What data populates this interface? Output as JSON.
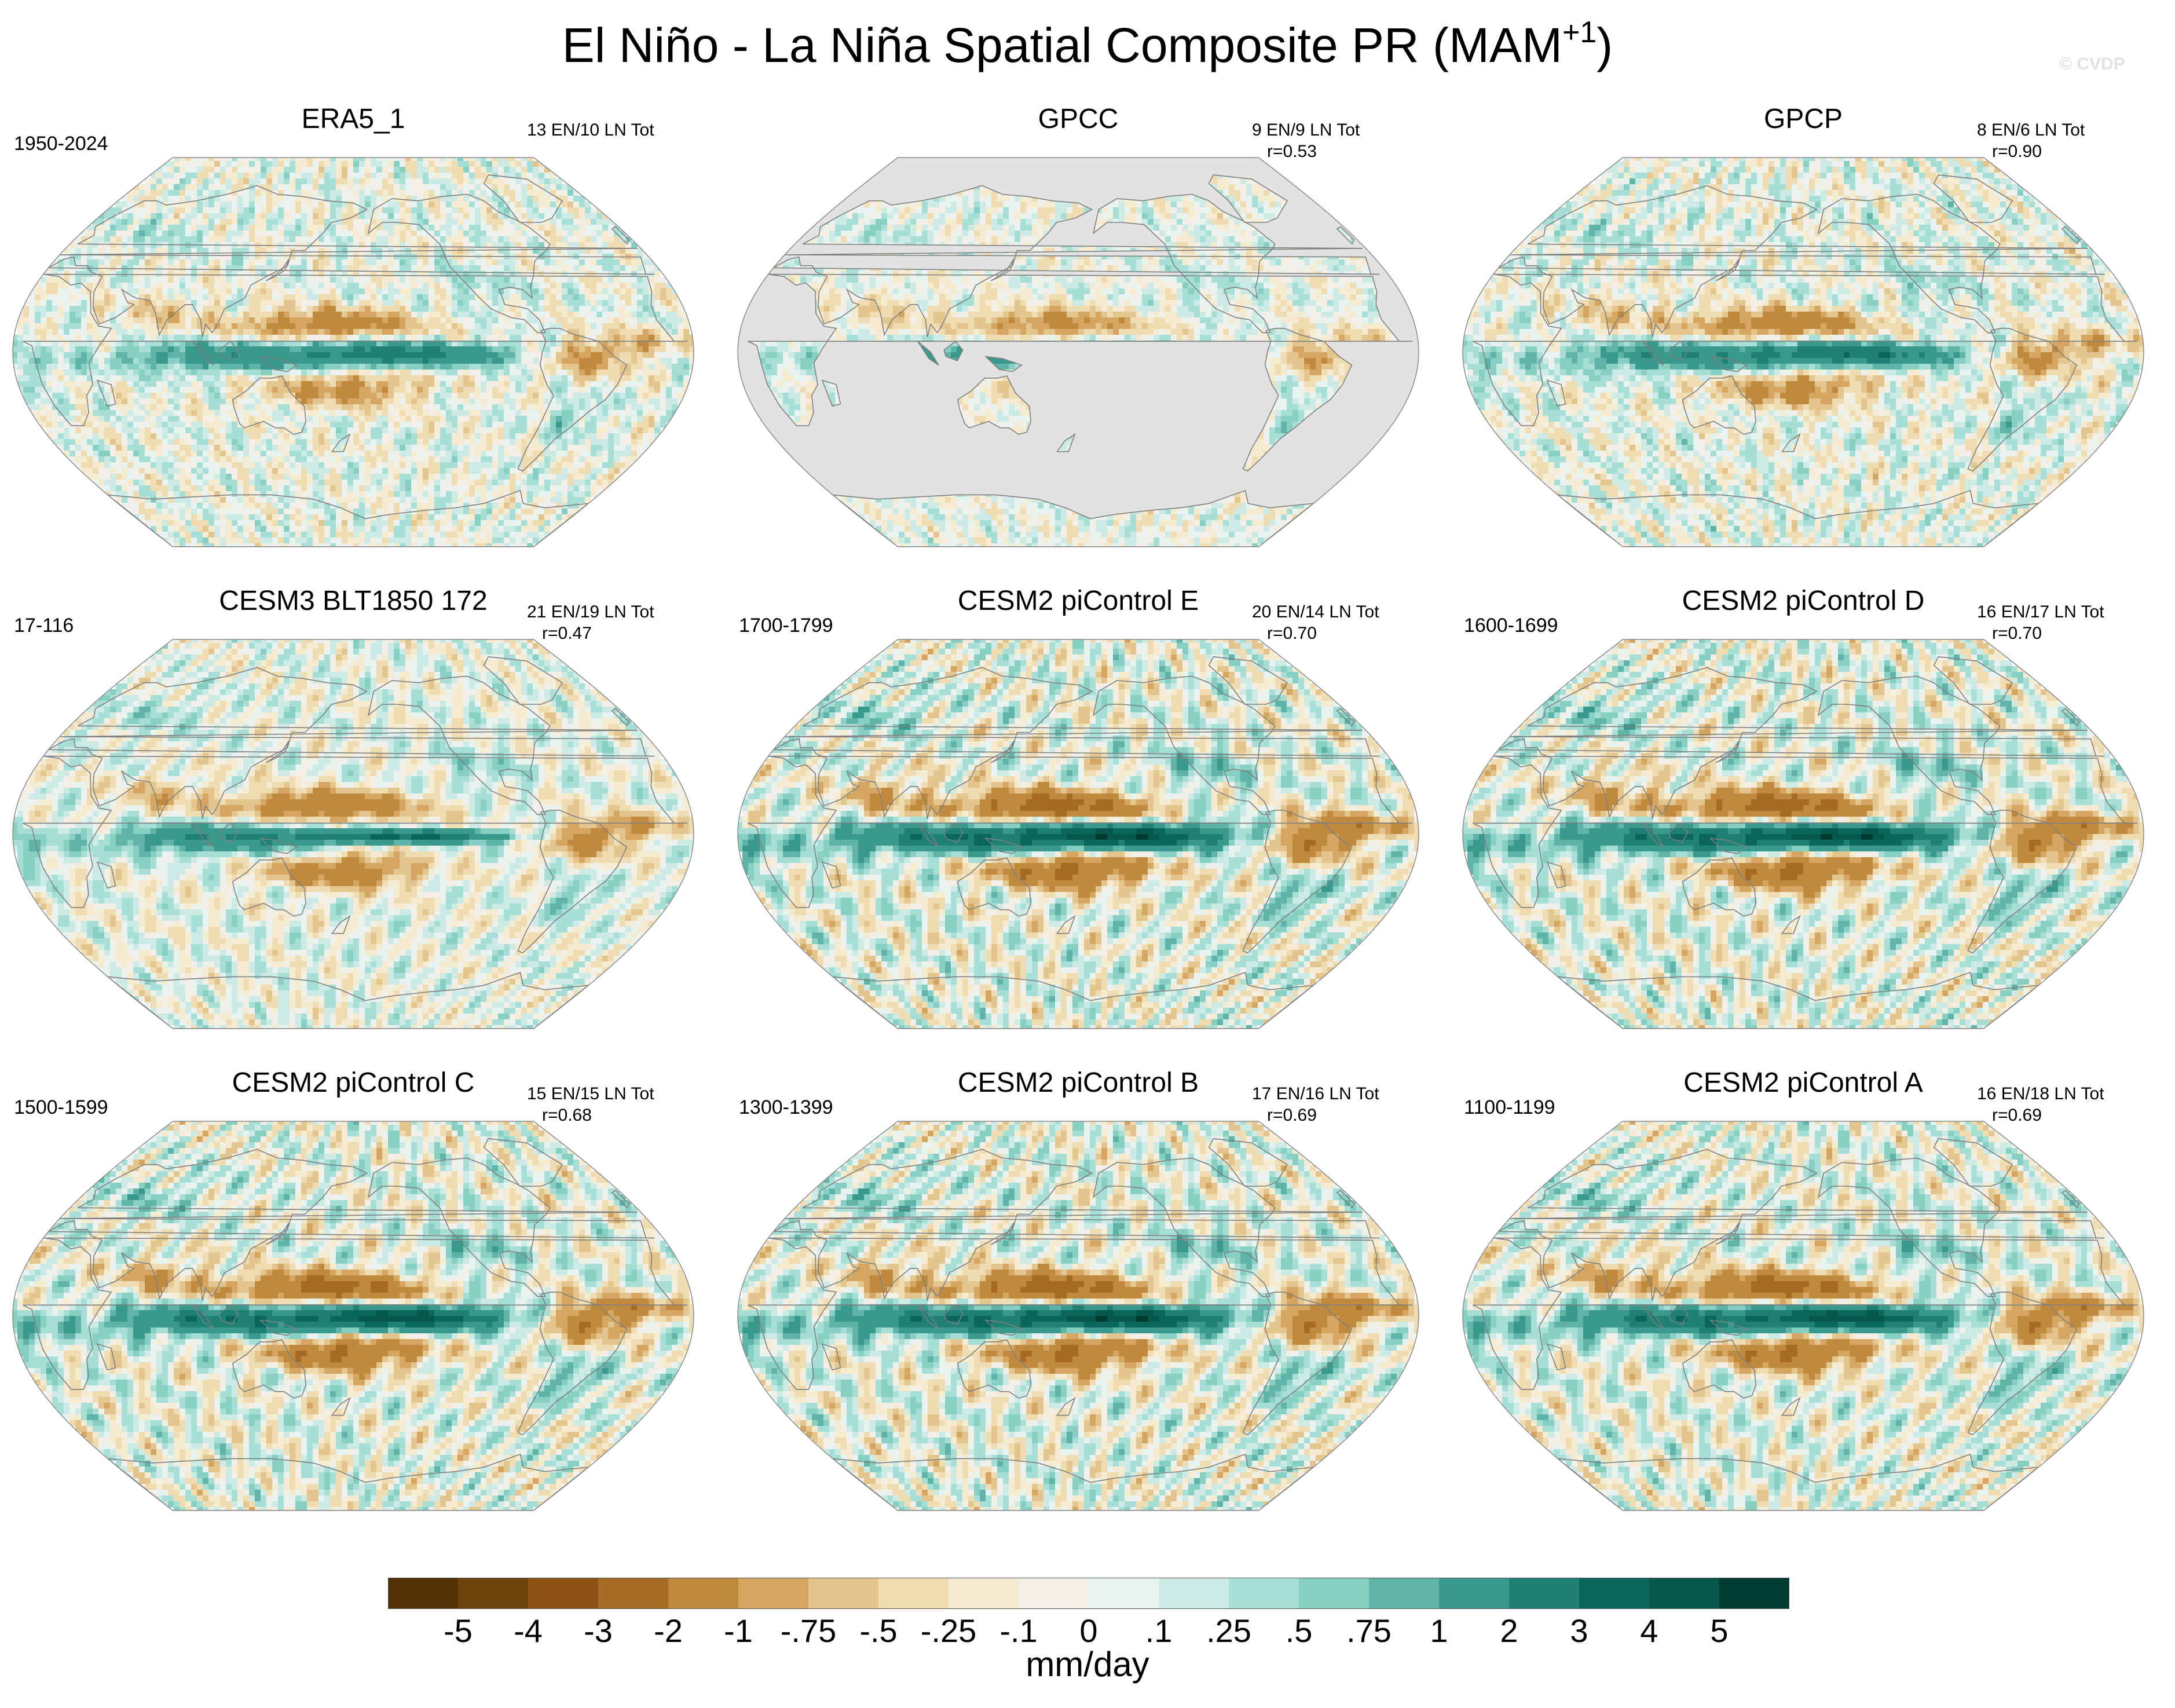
{
  "figure": {
    "title_main": "El Niño - La Niña Spatial Composite PR (MAM",
    "title_sup": "+1",
    "title_close": ")",
    "watermark": "© CVDP"
  },
  "colors": {
    "land_mask": "#e2e2e2",
    "coast": "#7f7f7f",
    "frame": "#8a8a8a"
  },
  "colorbar": {
    "units": "mm/day",
    "labels": [
      "-5",
      "-4",
      "-3",
      "-2",
      "-1",
      "-.75",
      "-.5",
      "-.25",
      "-.1",
      "0",
      ".1",
      ".25",
      ".5",
      ".75",
      "1",
      "2",
      "3",
      "4",
      "5"
    ],
    "colors": [
      "#543005",
      "#6e420c",
      "#8c5113",
      "#a66a24",
      "#bf8a3e",
      "#d4a661",
      "#e3c68e",
      "#efdcb3",
      "#f5ebd0",
      "#f2efe9",
      "#e8f2ef",
      "#cdeae4",
      "#a7ded5",
      "#86cfc2",
      "#5fb3a7",
      "#3a998d",
      "#1f8075",
      "#0b675c",
      "#05574a",
      "#003c30"
    ]
  },
  "chart_data": [
    {
      "type": "heatmap",
      "title": "ERA5_1",
      "period": "1950-2024",
      "counts": "13 EN/10 LN Tot",
      "correlation": "",
      "pattern": 1.1,
      "variant": "obs_era5",
      "levels": [
        -5,
        -4,
        -3,
        -2,
        -1,
        -0.75,
        -0.5,
        -0.25,
        -0.1,
        0,
        0.1,
        0.25,
        0.5,
        0.75,
        1,
        2,
        3,
        4,
        5
      ]
    },
    {
      "type": "heatmap",
      "title": "GPCC",
      "period": "",
      "counts": "9 EN/9 LN Tot",
      "correlation": "r=0.53",
      "pattern": 0.9,
      "variant": "land_only",
      "levels": [
        -5,
        -4,
        -3,
        -2,
        -1,
        -0.75,
        -0.5,
        -0.25,
        -0.1,
        0,
        0.1,
        0.25,
        0.5,
        0.75,
        1,
        2,
        3,
        4,
        5
      ]
    },
    {
      "type": "heatmap",
      "title": "GPCP",
      "period": "",
      "counts": "8 EN/6 LN Tot",
      "correlation": "r=0.90",
      "pattern": 1.2,
      "variant": "obs_gpcp",
      "levels": [
        -5,
        -4,
        -3,
        -2,
        -1,
        -0.75,
        -0.5,
        -0.25,
        -0.1,
        0,
        0.1,
        0.25,
        0.5,
        0.75,
        1,
        2,
        3,
        4,
        5
      ]
    },
    {
      "type": "heatmap",
      "title": "CESM3 BLT1850 172",
      "period": "17-116",
      "counts": "21 EN/19 LN Tot",
      "correlation": "r=0.47",
      "pattern": 1.4,
      "variant": "narrow",
      "levels": [
        -5,
        -4,
        -3,
        -2,
        -1,
        -0.75,
        -0.5,
        -0.25,
        -0.1,
        0,
        0.1,
        0.25,
        0.5,
        0.75,
        1,
        2,
        3,
        4,
        5
      ]
    },
    {
      "type": "heatmap",
      "title": "CESM2 piControl E",
      "period": "1700-1799",
      "counts": "20 EN/14 LN Tot",
      "correlation": "r=0.70",
      "pattern": 2.0,
      "variant": "model",
      "levels": [
        -5,
        -4,
        -3,
        -2,
        -1,
        -0.75,
        -0.5,
        -0.25,
        -0.1,
        0,
        0.1,
        0.25,
        0.5,
        0.75,
        1,
        2,
        3,
        4,
        5
      ]
    },
    {
      "type": "heatmap",
      "title": "CESM2 piControl D",
      "period": "1600-1699",
      "counts": "16 EN/17 LN Tot",
      "correlation": "r=0.70",
      "pattern": 2.0,
      "variant": "model",
      "levels": [
        -5,
        -4,
        -3,
        -2,
        -1,
        -0.75,
        -0.5,
        -0.25,
        -0.1,
        0,
        0.1,
        0.25,
        0.5,
        0.75,
        1,
        2,
        3,
        4,
        5
      ]
    },
    {
      "type": "heatmap",
      "title": "CESM2 piControl C",
      "period": "1500-1599",
      "counts": "15 EN/15 LN Tot",
      "correlation": "r=0.68",
      "pattern": 1.9,
      "variant": "model",
      "levels": [
        -5,
        -4,
        -3,
        -2,
        -1,
        -0.75,
        -0.5,
        -0.25,
        -0.1,
        0,
        0.1,
        0.25,
        0.5,
        0.75,
        1,
        2,
        3,
        4,
        5
      ]
    },
    {
      "type": "heatmap",
      "title": "CESM2 piControl B",
      "period": "1300-1399",
      "counts": "17 EN/16 LN Tot",
      "correlation": "r=0.69",
      "pattern": 2.0,
      "variant": "model",
      "levels": [
        -5,
        -4,
        -3,
        -2,
        -1,
        -0.75,
        -0.5,
        -0.25,
        -0.1,
        0,
        0.1,
        0.25,
        0.5,
        0.75,
        1,
        2,
        3,
        4,
        5
      ]
    },
    {
      "type": "heatmap",
      "title": "CESM2 piControl A",
      "period": "1100-1199",
      "counts": "16 EN/18 LN Tot",
      "correlation": "r=0.69",
      "pattern": 1.9,
      "variant": "model",
      "levels": [
        -5,
        -4,
        -3,
        -2,
        -1,
        -0.75,
        -0.5,
        -0.25,
        -0.1,
        0,
        0.1,
        0.25,
        0.5,
        0.75,
        1,
        2,
        3,
        4,
        5
      ]
    }
  ]
}
